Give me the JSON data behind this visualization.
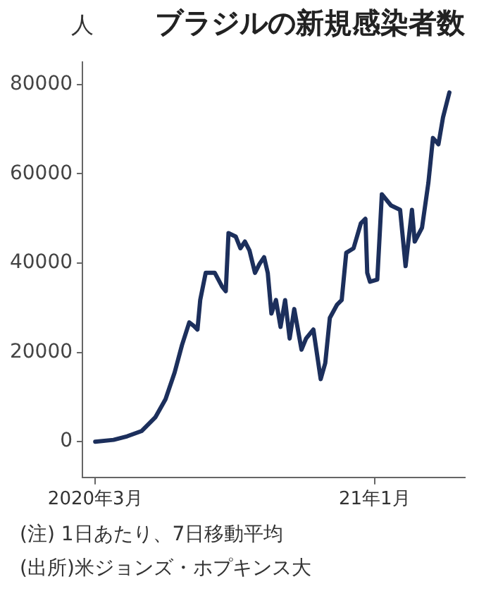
{
  "chart_data": {
    "type": "line",
    "title": "ブラジルの新規感染者数",
    "ylabel": "人",
    "annotations": [
      "(注) 1日あたり、7日移動平均",
      "(出所)米ジョンズ・ホプキンス大"
    ],
    "x": [
      "2020-03-01",
      "2020-03-21",
      "2020-04-05",
      "2020-04-21",
      "2020-05-06",
      "2020-05-17",
      "2020-05-27",
      "2020-06-04",
      "2020-06-12",
      "2020-06-17",
      "2020-06-21",
      "2020-06-24",
      "2020-06-30",
      "2020-07-10",
      "2020-07-18",
      "2020-07-22",
      "2020-07-25",
      "2020-08-02",
      "2020-08-07",
      "2020-08-12",
      "2020-08-17",
      "2020-08-23",
      "2020-08-28",
      "2020-09-02",
      "2020-09-06",
      "2020-09-10",
      "2020-09-15",
      "2020-09-20",
      "2020-09-25",
      "2020-09-30",
      "2020-10-05",
      "2020-10-13",
      "2020-10-18",
      "2020-10-26",
      "2020-11-03",
      "2020-11-08",
      "2020-11-13",
      "2020-11-21",
      "2020-11-26",
      "2020-12-01",
      "2020-12-09",
      "2020-12-17",
      "2020-12-22",
      "2020-12-24",
      "2020-12-27",
      "2021-01-04",
      "2021-01-09",
      "2021-01-19",
      "2021-01-29",
      "2021-02-04",
      "2021-02-11",
      "2021-02-14",
      "2021-02-22",
      "2021-03-01",
      "2021-03-06",
      "2021-03-12",
      "2021-03-17",
      "2021-03-24"
    ],
    "series": [
      {
        "color": "#1c2f5c",
        "values": [
          0,
          400,
          1200,
          2400,
          5500,
          9500,
          15500,
          21600,
          26700,
          25900,
          25100,
          31700,
          37800,
          37800,
          34700,
          33700,
          46700,
          45900,
          43300,
          44800,
          42800,
          37800,
          39800,
          41300,
          37800,
          28700,
          31700,
          25700,
          31700,
          23100,
          29700,
          20600,
          23100,
          25100,
          14000,
          17600,
          27700,
          30700,
          31700,
          42300,
          43300,
          48900,
          49900,
          37800,
          35800,
          36300,
          55400,
          52900,
          51900,
          39300,
          51900,
          44800,
          47900,
          58000,
          68000,
          66600,
          72600,
          78200
        ]
      }
    ],
    "xlim": [
      "2020-02-16",
      "2021-04-10"
    ],
    "xticks": [
      {
        "value": "2020-03-01",
        "label": "2020年3月"
      },
      {
        "value": "2021-01-01",
        "label": "21年1月"
      }
    ],
    "ylim": [
      -8000,
      85000
    ],
    "yticks": [
      0,
      20000,
      40000,
      60000,
      80000
    ],
    "grid": false,
    "legend": false,
    "marker": "none",
    "line_style": "solid"
  }
}
